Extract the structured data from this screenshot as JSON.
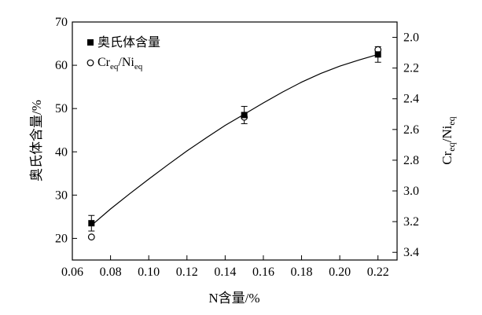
{
  "chart_data": {
    "type": "scatter",
    "x": [
      0.07,
      0.15,
      0.22
    ],
    "xlim": [
      0.06,
      0.23
    ],
    "xticks": [
      0.06,
      0.08,
      0.1,
      0.12,
      0.14,
      0.16,
      0.18,
      0.2,
      0.22
    ],
    "xtick_labels": [
      "0.06",
      "0.08",
      "0.10",
      "0.12",
      "0.14",
      "0.16",
      "0.18",
      "0.20",
      "0.22"
    ],
    "xlabel": "N含量/%",
    "ylabel_left": "奥氏体含量/%",
    "ylim_left": [
      15,
      70
    ],
    "yticks_left": [
      20,
      30,
      40,
      50,
      60,
      70
    ],
    "ylabel_right": {
      "main": "Cr",
      "sub1": "eq",
      "sep": "/Ni",
      "sub2": "eq"
    },
    "ylim_right": [
      3.45,
      1.9
    ],
    "yticks_right": [
      2.0,
      2.2,
      2.4,
      2.6,
      2.8,
      3.0,
      3.2,
      3.4
    ],
    "ytick_labels_right": [
      "2.0",
      "2.2",
      "2.4",
      "2.6",
      "2.8",
      "3.0",
      "3.2",
      "3.4"
    ],
    "grid": false,
    "legend_position": "top-left",
    "series": [
      {
        "name": "奥氏体含量",
        "axis": "left",
        "marker": "filled-square",
        "values": [
          23.5,
          48.5,
          62.5
        ],
        "error": [
          1.8,
          2.0,
          1.8
        ]
      },
      {
        "name": "Cr_eq/Ni_eq",
        "name_parts": {
          "main": "Cr",
          "sub1": "eq",
          "sep": "/Ni",
          "sub2": "eq"
        },
        "axis": "right",
        "marker": "open-circle",
        "values": [
          3.3,
          2.52,
          2.08
        ]
      }
    ],
    "trend_line": {
      "axis": "left",
      "x": [
        0.07,
        0.08,
        0.09,
        0.1,
        0.11,
        0.12,
        0.13,
        0.14,
        0.15,
        0.16,
        0.17,
        0.18,
        0.19,
        0.2,
        0.21,
        0.22
      ],
      "y": [
        23.0,
        26.8,
        30.3,
        33.7,
        37.0,
        40.2,
        43.2,
        46.1,
        48.7,
        51.3,
        53.8,
        56.1,
        58.1,
        59.8,
        61.2,
        62.5
      ]
    }
  }
}
